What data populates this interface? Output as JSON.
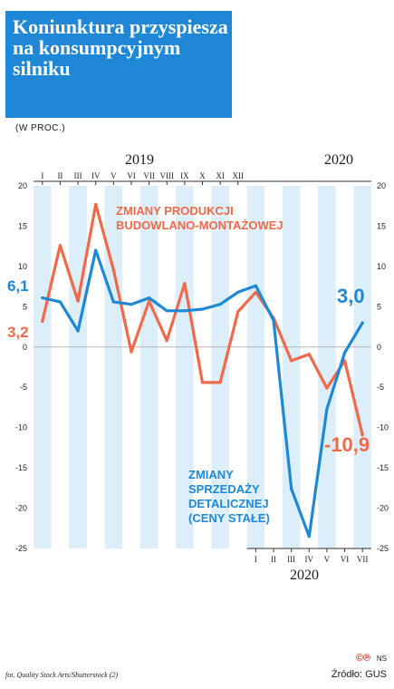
{
  "header": {
    "title": "Koniunktura przyspiesza na konsumpcyjnym silniku",
    "subtitle": "(W PROC.)"
  },
  "chart_data": {
    "type": "line",
    "x": [
      "I",
      "II",
      "III",
      "IV",
      "V",
      "VI",
      "VII",
      "VIII",
      "IX",
      "X",
      "XI",
      "XII",
      "I",
      "II",
      "III",
      "IV",
      "V",
      "VI",
      "VII"
    ],
    "year_labels": {
      "top": [
        "2019",
        "2020"
      ],
      "bottom": "2020"
    },
    "ylim": [
      -25,
      20
    ],
    "yticks": [
      20,
      15,
      10,
      5,
      0,
      -5,
      -10,
      -15,
      -20,
      -25
    ],
    "series": [
      {
        "name": "ZMIANY PRODUKCJI BUDOWLANO-MONTAŻOWEJ",
        "color": "#f06a4a",
        "values": [
          3.2,
          12.6,
          5.7,
          17.7,
          9.6,
          -0.6,
          5.7,
          0.8,
          7.9,
          -4.4,
          -4.4,
          4.4,
          6.8,
          3.6,
          -1.7,
          -0.9,
          -5.1,
          -1.7,
          -10.9
        ]
      },
      {
        "name": "ZMIANY SPRZEDAŻY DETALICZNEJ (CENY STAŁE)",
        "color": "#1e88d6",
        "values": [
          6.1,
          5.6,
          2.0,
          12.0,
          5.6,
          5.3,
          6.1,
          4.5,
          4.5,
          4.7,
          5.3,
          6.8,
          7.6,
          3.3,
          -17.6,
          -23.5,
          -7.7,
          -0.7,
          3.0
        ]
      }
    ],
    "annotations": {
      "start_orange": "3,2",
      "start_blue": "6,1",
      "end_blue": "3,0",
      "end_orange": "-10,9"
    },
    "grid": "alternating vertical stripes"
  },
  "footer": {
    "credit": "fot. Quality Stock Arts/Shutterstock (2)",
    "source": "Źródło: GUS",
    "ns": "NS",
    "logo": "©℗"
  },
  "colors": {
    "accent_blue": "#1e88d6",
    "accent_orange": "#f06a4a",
    "stripe": "#dceefa"
  }
}
